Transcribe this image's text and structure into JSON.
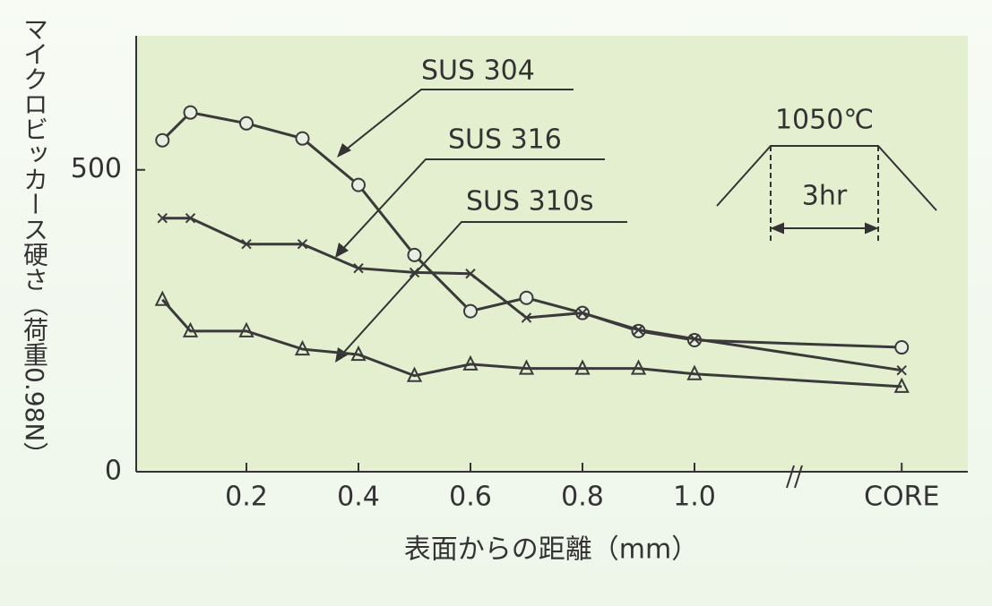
{
  "chart_data": {
    "type": "line",
    "y_label": "マイクロビッカース硬さ（荷重0.98N）",
    "x_label": "表面からの距離（mm）",
    "annotations": [
      "1050℃",
      "3hr"
    ],
    "x": [
      0.05,
      0.1,
      0.2,
      0.3,
      0.4,
      0.5,
      0.6,
      0.7,
      0.8,
      0.9,
      1.0,
      1.37
    ],
    "series": [
      {
        "name": "SUS 304",
        "marker": "circle",
        "color": "#3a3a3a",
        "values": [
          549,
          595,
          577,
          552,
          475,
          359,
          266,
          288,
          263,
          233,
          218,
          206
        ]
      },
      {
        "name": "SUS 316",
        "marker": "x",
        "color": "#3a3a3a",
        "values": [
          420,
          420,
          377,
          377,
          337,
          330,
          328,
          255,
          263,
          235,
          220,
          168
        ]
      },
      {
        "name": "SUS 310s",
        "marker": "triangle",
        "color": "#3a3a3a",
        "values": [
          285,
          233,
          233,
          203,
          194,
          159,
          178,
          171,
          171,
          171,
          162,
          141
        ]
      }
    ],
    "xlim": [
      0,
      1.488
    ],
    "ylim": [
      0,
      722
    ],
    "xticks": [
      0.2,
      0.4,
      0.6,
      0.8,
      {
        "value": 1,
        "label": "1.0"
      },
      {
        "value": 1.37,
        "label": "CORE"
      }
    ],
    "yticks": [
      0,
      500
    ]
  }
}
